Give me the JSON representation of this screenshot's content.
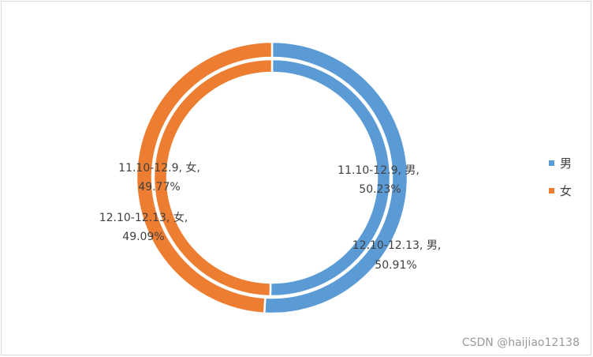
{
  "chart_data": {
    "type": "doughnut",
    "title": "",
    "categories": [
      "男",
      "女"
    ],
    "series": [
      {
        "name": "11.10-12.9",
        "values": [
          50.23,
          49.77
        ]
      },
      {
        "name": "12.10-12.13",
        "values": [
          50.91,
          49.09
        ]
      }
    ],
    "data_labels": [
      {
        "series": "11.10-12.9",
        "category": "男",
        "line1": "11.10-12.9, 男,",
        "line2": "50.23%"
      },
      {
        "series": "11.10-12.9",
        "category": "女",
        "line1": "11.10-12.9, 女,",
        "line2": "49.77%"
      },
      {
        "series": "12.10-12.13",
        "category": "男",
        "line1": "12.10-12.13, 男,",
        "line2": "50.91%"
      },
      {
        "series": "12.10-12.13",
        "category": "女",
        "line1": "12.10-12.13, 女,",
        "line2": "49.09%"
      }
    ],
    "colors": {
      "男": "#5b9bd5",
      "女": "#ed7d31"
    },
    "legend": {
      "position": "right",
      "items": [
        "男",
        "女"
      ]
    }
  },
  "watermark": "CSDN @haijiao12138"
}
